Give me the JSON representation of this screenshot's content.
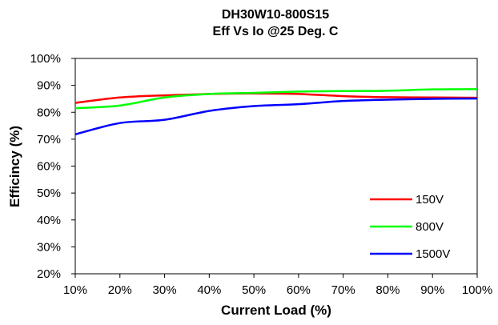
{
  "chart_data": {
    "type": "line",
    "title": "DH30W10-800S15",
    "subtitle": "Eff Vs Io @25 Deg. C",
    "xlabel": "Current Load (%)",
    "ylabel": "Efficincy (%)",
    "x": [
      10,
      20,
      30,
      40,
      50,
      60,
      70,
      80,
      90,
      100
    ],
    "x_tick_labels": [
      "10%",
      "20%",
      "30%",
      "40%",
      "50%",
      "60%",
      "70%",
      "80%",
      "90%",
      "100%"
    ],
    "y_tick_labels": [
      "20%",
      "30%",
      "40%",
      "50%",
      "60%",
      "70%",
      "80%",
      "90%",
      "100%"
    ],
    "xlim": [
      10,
      100
    ],
    "ylim": [
      20,
      100
    ],
    "grid": false,
    "legend_position": "bottom-right",
    "series": [
      {
        "name": "150V",
        "color": "#ff0000",
        "values": [
          83.5,
          85.5,
          86.3,
          86.8,
          87.0,
          86.8,
          86.0,
          85.6,
          85.5,
          85.4
        ]
      },
      {
        "name": "800V",
        "color": "#00ff00",
        "values": [
          81.5,
          82.5,
          85.5,
          86.8,
          87.2,
          87.7,
          87.9,
          88.0,
          88.5,
          88.6
        ]
      },
      {
        "name": "1500V",
        "color": "#0000ff",
        "values": [
          71.8,
          76.0,
          77.2,
          80.5,
          82.3,
          83.0,
          84.2,
          84.7,
          85.0,
          85.1
        ]
      }
    ]
  }
}
